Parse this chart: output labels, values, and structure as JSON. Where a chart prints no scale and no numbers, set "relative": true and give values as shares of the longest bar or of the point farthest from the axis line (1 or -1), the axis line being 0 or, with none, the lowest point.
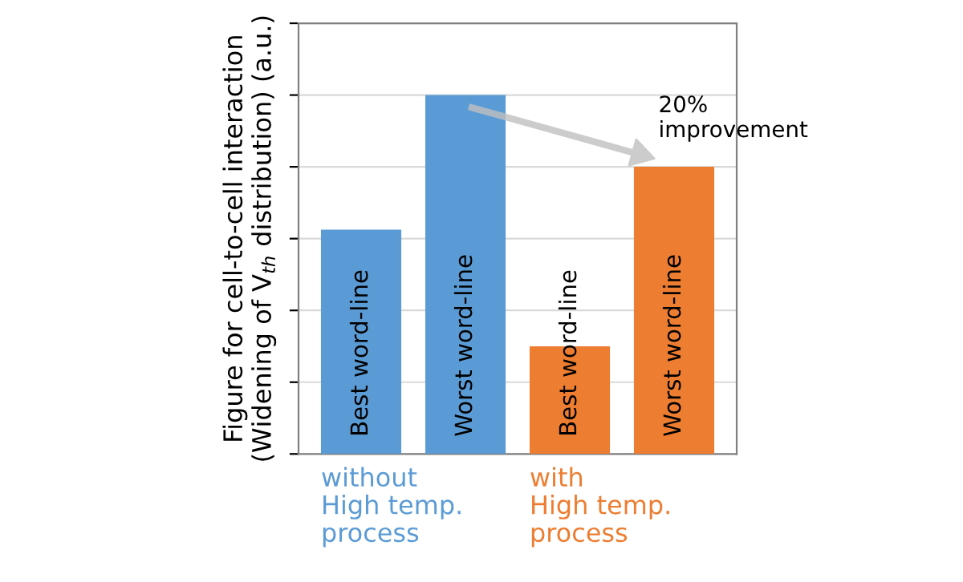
{
  "chart_data": {
    "type": "bar",
    "relative": true,
    "ylabel": "Figure for cell-to-cell interaction\n(Widening of V$_{th}$ distribution) (a.u.)",
    "categories": [
      "Best word-line",
      "Worst word-line",
      "Best word-line",
      "Worst word-line"
    ],
    "series": [
      {
        "name": "without\nHigh temp.\nprocess",
        "color": "#5b9bd5",
        "values": [
          0.625,
          1,
          null,
          null
        ]
      },
      {
        "name": "with\nHigh temp.\nprocess",
        "color": "#ed7d31",
        "values": [
          null,
          null,
          0.3,
          0.8
        ]
      }
    ],
    "annotations": [
      "20%\nimprovement"
    ],
    "grid": "y",
    "legend": false
  }
}
